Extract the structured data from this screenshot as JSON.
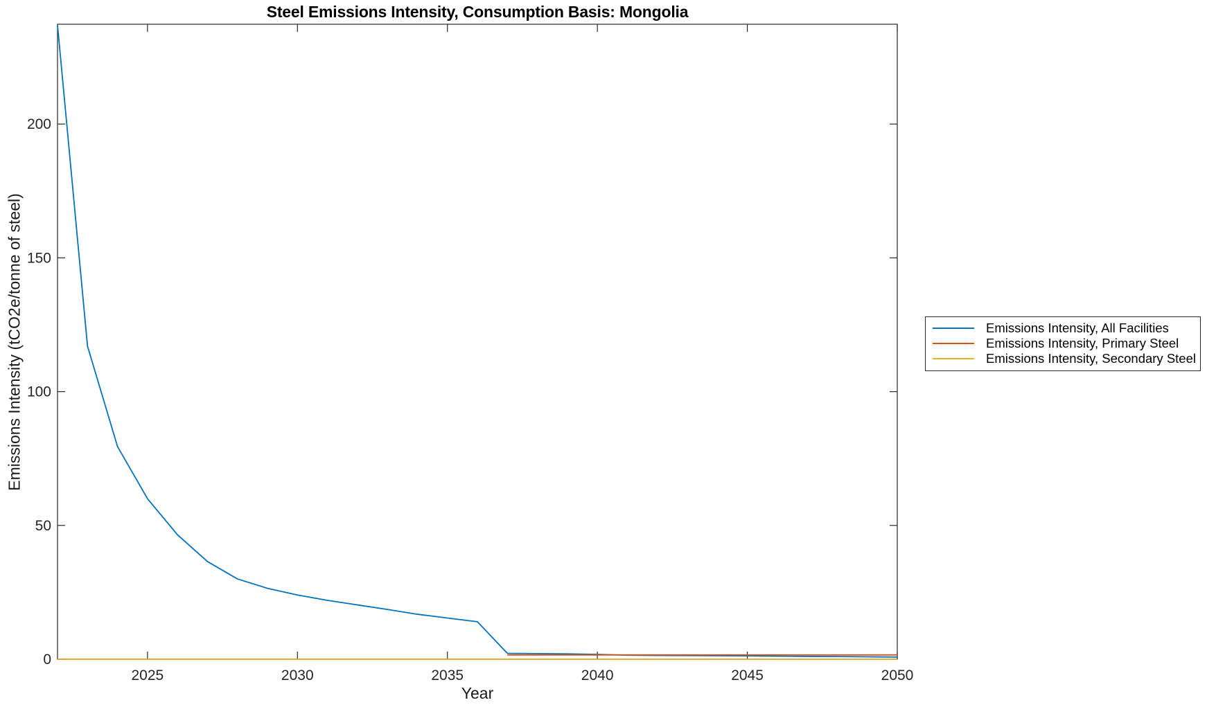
{
  "figure": {
    "background": "#ffffff",
    "axis_color": "#262626",
    "tick_label_color": "#262626"
  },
  "chart_data": {
    "type": "line",
    "title": "Steel Emissions Intensity, Consumption Basis: Mongolia",
    "xlabel": "Year",
    "ylabel": "Emissions Intensity (tCO2e/tonne of steel)",
    "xlim": [
      2022,
      2050
    ],
    "ylim": [
      0,
      237.3
    ],
    "x_ticks": [
      2025,
      2030,
      2035,
      2040,
      2045,
      2050
    ],
    "y_ticks": [
      0,
      50,
      100,
      150,
      200
    ],
    "grid": false,
    "box": true,
    "legend_position": "outside-right",
    "x": [
      2022,
      2023,
      2024,
      2025,
      2026,
      2027,
      2028,
      2029,
      2030,
      2031,
      2032,
      2033,
      2034,
      2035,
      2036,
      2037,
      2038,
      2039,
      2040,
      2041,
      2042,
      2043,
      2044,
      2045,
      2046,
      2047,
      2048,
      2049,
      2050
    ],
    "series": [
      {
        "name": "Emissions Intensity, All Facilities",
        "color": "#0072BD",
        "values": [
          237,
          117,
          79.5,
          60,
          46.5,
          36.5,
          30,
          26.5,
          24,
          22,
          20.3,
          18.6,
          16.8,
          15.4,
          14,
          2.2,
          2.1,
          2.0,
          1.8,
          1.5,
          1.4,
          1.35,
          1.3,
          1.25,
          1.15,
          1.05,
          1.0,
          0.9,
          0.8
        ]
      },
      {
        "name": "Emissions Intensity, Primary Steel",
        "color": "#D95319",
        "values": [
          null,
          null,
          null,
          null,
          null,
          null,
          null,
          null,
          null,
          null,
          null,
          null,
          null,
          null,
          null,
          1.6,
          1.6,
          1.6,
          1.6,
          1.6,
          1.6,
          1.6,
          1.6,
          1.6,
          1.6,
          1.6,
          1.6,
          1.6,
          1.6
        ]
      },
      {
        "name": "Emissions Intensity, Secondary Steel",
        "color": "#EDB120",
        "values": [
          0,
          0,
          0,
          0,
          0,
          0,
          0,
          0,
          0,
          0,
          0,
          0,
          0,
          0,
          0,
          0,
          0,
          0,
          0,
          0,
          0,
          0,
          0,
          0,
          0,
          0,
          0,
          0,
          0
        ]
      }
    ]
  }
}
